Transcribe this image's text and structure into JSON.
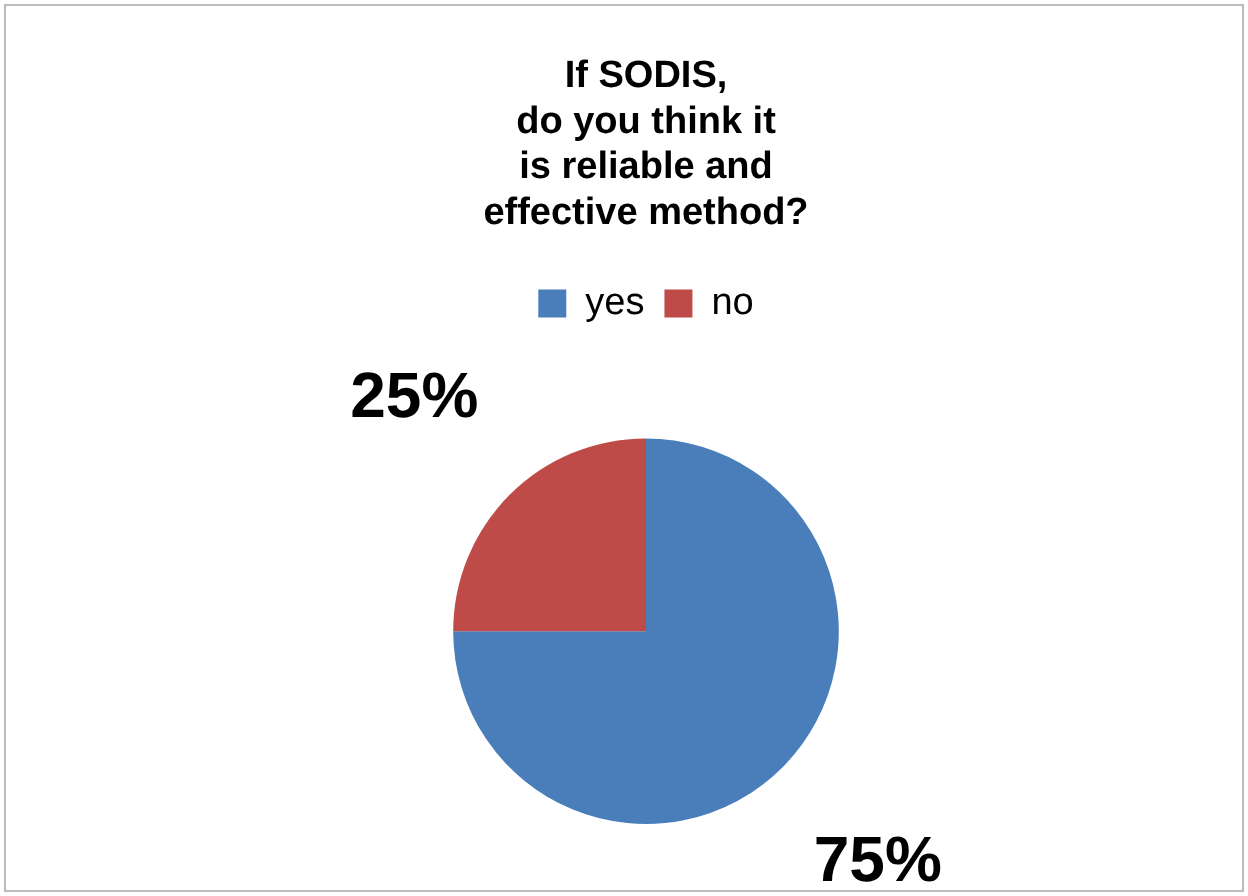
{
  "chart_data": {
    "type": "pie",
    "title": "If SODIS,\ndo you think it\nis reliable and\neffective method?",
    "categories": [
      "yes",
      "no"
    ],
    "values": [
      75,
      25
    ],
    "colors": [
      "#4a7ebb",
      "#be4b48"
    ],
    "legend": "top",
    "value_labels": [
      "75%",
      "25%"
    ]
  }
}
